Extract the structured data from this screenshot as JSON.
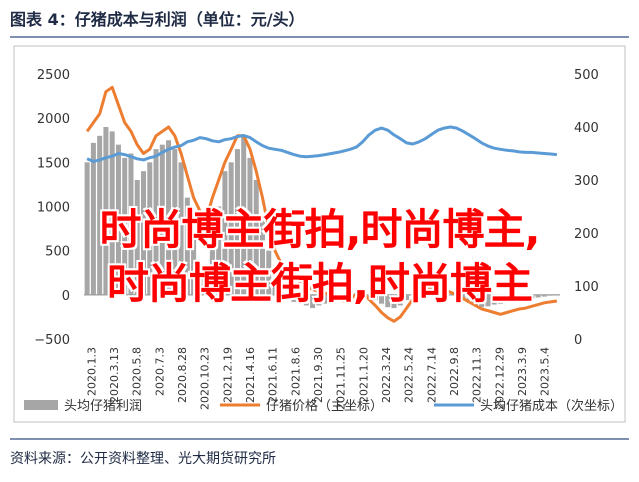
{
  "header": {
    "title": "图表 4：仔猪成本与利润（单位：元/头）"
  },
  "source": {
    "text": "资料来源：公开资料整理、光大期货研究所"
  },
  "watermark": {
    "line1": "时尚博主街拍,时尚博主,",
    "line2": "时尚博主街拍,时尚博主"
  },
  "colors": {
    "profit": "#a6a6a6",
    "price": "#ed7d31",
    "cost": "#5b9bd5",
    "title": "#1f2a44"
  },
  "chart_data": {
    "type": "bar+line",
    "title": "",
    "x_labels": [
      "2020.1.3",
      "2020.3.13",
      "2020.5.8",
      "2020.7.3",
      "2020.8.28",
      "2020.10.23",
      "2021.2.19",
      "2021.4.16",
      "2021.6.11",
      "2021.8.6",
      "2021.9.30",
      "2021.11.25",
      "2021.1.20",
      "2022.3.24",
      "2022.5.24",
      "2022.7.14",
      "2022.9.8",
      "2022.11.3",
      "2022.12.29",
      "2023.3.9",
      "2023.5.4"
    ],
    "y_left": {
      "min": -500,
      "max": 2500,
      "ticks": [
        -500,
        0,
        500,
        1000,
        1500,
        2000,
        2500
      ],
      "tick_labels": [
        "−500",
        "0",
        "500",
        "1000",
        "1500",
        "2000",
        "2500"
      ]
    },
    "y_right": {
      "min": 0,
      "max": 500,
      "ticks": [
        0,
        100,
        200,
        300,
        400,
        500
      ],
      "tick_labels": [
        "0",
        "100",
        "200",
        "300",
        "400",
        "500"
      ]
    },
    "legend_position": "bottom",
    "series": [
      {
        "name": "头均仔猪利润",
        "type": "bar",
        "axis": "left",
        "values": [
          1500,
          1720,
          1800,
          1900,
          1850,
          1700,
          1550,
          1600,
          1300,
          1400,
          1500,
          1650,
          1700,
          1750,
          1650,
          1500,
          1100,
          700,
          300,
          200,
          600,
          1000,
          1400,
          1500,
          1650,
          1800,
          1550,
          1300,
          900,
          500,
          150,
          30,
          -40,
          -80,
          -100,
          -120,
          -150,
          -120,
          -100,
          -80,
          -50,
          -20,
          0,
          20,
          40,
          -20,
          -60,
          -100,
          -140,
          -150,
          -120,
          -60,
          0,
          50,
          100,
          80,
          50,
          20,
          0,
          -30,
          -60,
          -90,
          -120,
          -140,
          -130,
          -110,
          -100,
          -80,
          -70,
          -60,
          -50,
          -40,
          -30,
          -20,
          -10,
          0
        ]
      },
      {
        "name": "仔猪价格（主坐标）",
        "type": "line",
        "axis": "left",
        "values": [
          1850,
          1950,
          2050,
          2300,
          2350,
          2150,
          1950,
          1850,
          1700,
          1600,
          1650,
          1800,
          1850,
          1900,
          1800,
          1600,
          1350,
          1100,
          950,
          850,
          1100,
          1300,
          1500,
          1650,
          1800,
          1800,
          1650,
          1400,
          1100,
          750,
          500,
          350,
          250,
          200,
          150,
          100,
          60,
          40,
          20,
          0,
          -30,
          -70,
          -40,
          0,
          30,
          -50,
          -120,
          -200,
          -260,
          -300,
          -250,
          -150,
          -50,
          0,
          50,
          100,
          80,
          60,
          30,
          0,
          -40,
          -80,
          -120,
          -160,
          -180,
          -200,
          -220,
          -200,
          -180,
          -160,
          -150,
          -130,
          -110,
          -90,
          -80,
          -70
        ]
      },
      {
        "name": "头均仔猪成本（次坐标）",
        "type": "line",
        "axis": "right",
        "values": [
          340,
          335,
          338,
          342,
          345,
          350,
          348,
          344,
          340,
          338,
          342,
          345,
          352,
          358,
          362,
          365,
          372,
          375,
          380,
          378,
          374,
          372,
          376,
          378,
          382,
          384,
          380,
          372,
          365,
          360,
          358,
          356,
          352,
          348,
          345,
          344,
          345,
          346,
          348,
          350,
          352,
          355,
          358,
          362,
          372,
          385,
          394,
          398,
          394,
          385,
          378,
          370,
          368,
          372,
          378,
          386,
          394,
          398,
          400,
          398,
          392,
          385,
          378,
          370,
          364,
          360,
          358,
          356,
          355,
          353,
          352,
          352,
          351,
          350,
          349,
          348
        ]
      }
    ]
  }
}
